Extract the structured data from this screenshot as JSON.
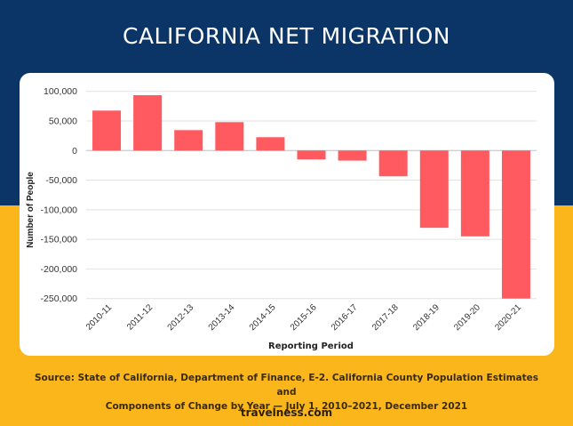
{
  "header": {
    "title": "CALIFORNIA NET MIGRATION"
  },
  "footer": {
    "source_line1": "Source: State of California, Department of Finance, E-2. California County Population Estimates and",
    "source_line2": "Components of Change by Year — July 1, 2010–2021, December 2021",
    "brand": "travelness.com"
  },
  "colors": {
    "navy": "#0B3566",
    "yellow": "#FBB61C",
    "bar": "#FF5A5F",
    "grid": "#E2E2E2",
    "text": "#333333"
  },
  "chart_data": {
    "type": "bar",
    "title": "CALIFORNIA NET MIGRATION",
    "xlabel": "Reporting Period",
    "ylabel": "Number of People",
    "categories": [
      "2010-11",
      "2011-12",
      "2012-13",
      "2013-14",
      "2014-15",
      "2015-16",
      "2016-17",
      "2017-18",
      "2018-19",
      "2019-20",
      "2020-21"
    ],
    "values": [
      67500,
      93500,
      34500,
      48000,
      22500,
      -15000,
      -17000,
      -43500,
      -130500,
      -145000,
      -250000
    ],
    "ylim": [
      -250000,
      100000
    ],
    "yticks": [
      100000,
      50000,
      0,
      -50000,
      -100000,
      -150000,
      -200000,
      -250000
    ],
    "ytick_labels": [
      "100,000",
      "50,000",
      "0",
      "-50,000",
      "-100,000",
      "-150,000",
      "-200,000",
      "-250,000"
    ],
    "grid": true,
    "legend": "none"
  }
}
